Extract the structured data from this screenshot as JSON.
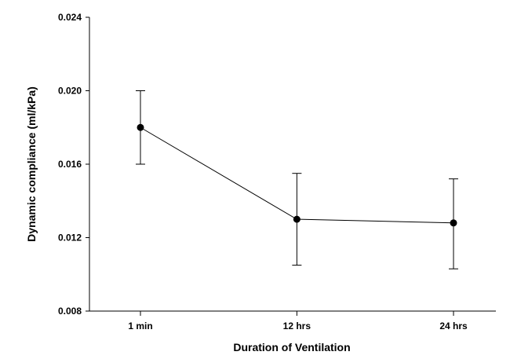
{
  "chart_data": {
    "type": "line",
    "title": "",
    "xlabel": "Duration of Ventilation",
    "ylabel": "Dynamic compliance (ml/kPa)",
    "x_scale": "numeric",
    "x_unit": "hours",
    "x": [
      0.0167,
      12,
      24
    ],
    "x_tick_labels": [
      "1 min",
      "12 hrs",
      "24 hrs"
    ],
    "ylim": [
      0.008,
      0.024
    ],
    "y_ticks": [
      0.008,
      0.012,
      0.016,
      0.02,
      0.024
    ],
    "y_tick_labels": [
      "0.008",
      "0.012",
      "0.016",
      "0.020",
      "0.024"
    ],
    "grid": false,
    "legend": "none",
    "series": [
      {
        "values": [
          0.018,
          0.013,
          0.0128
        ],
        "error_lower": [
          0.016,
          0.0105,
          0.0103
        ],
        "error_upper": [
          0.02,
          0.0155,
          0.0152
        ],
        "color": "#000000"
      }
    ]
  }
}
